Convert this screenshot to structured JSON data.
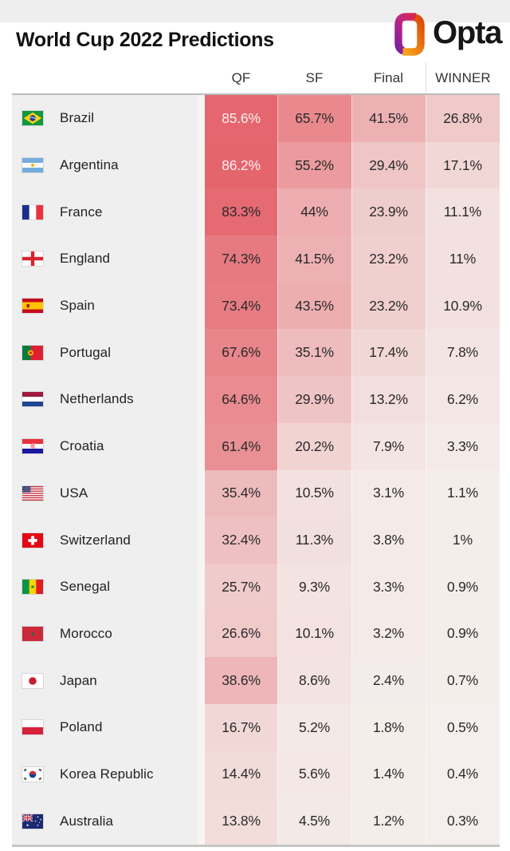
{
  "header": {
    "title": "World Cup 2022 Predictions",
    "brand": "Opta"
  },
  "style": {
    "heat_base": "#f4efec",
    "heat_max": "#e24d57",
    "heat_gamma": 1.1,
    "white_text_threshold": 85,
    "panel_bg": "#efefef",
    "value_text": "#2a2a2a",
    "value_text_light": "#fcf2f1",
    "brand_gradient_left": [
      "#d42b49",
      "#c4267d",
      "#7b1fa2"
    ],
    "brand_gradient_right": [
      "#dc4a0c",
      "#f7a31b"
    ]
  },
  "chart_data": {
    "type": "heatmap",
    "title": "World Cup 2022 Predictions",
    "unit": "%",
    "columns": [
      "QF",
      "SF",
      "Final",
      "WINNER"
    ],
    "rows": [
      {
        "team": "Brazil",
        "flag": "br",
        "values": [
          85.6,
          65.7,
          41.5,
          26.8
        ]
      },
      {
        "team": "Argentina",
        "flag": "ar",
        "values": [
          86.2,
          55.2,
          29.4,
          17.1
        ]
      },
      {
        "team": "France",
        "flag": "fr",
        "values": [
          83.3,
          44,
          23.9,
          11.1
        ]
      },
      {
        "team": "England",
        "flag": "en",
        "values": [
          74.3,
          41.5,
          23.2,
          11
        ]
      },
      {
        "team": "Spain",
        "flag": "es",
        "values": [
          73.4,
          43.5,
          23.2,
          10.9
        ]
      },
      {
        "team": "Portugal",
        "flag": "pt",
        "values": [
          67.6,
          35.1,
          17.4,
          7.8
        ]
      },
      {
        "team": "Netherlands",
        "flag": "nl",
        "values": [
          64.6,
          29.9,
          13.2,
          6.2
        ]
      },
      {
        "team": "Croatia",
        "flag": "hr",
        "values": [
          61.4,
          20.2,
          7.9,
          3.3
        ]
      },
      {
        "team": "USA",
        "flag": "us",
        "values": [
          35.4,
          10.5,
          3.1,
          1.1
        ]
      },
      {
        "team": "Switzerland",
        "flag": "ch",
        "values": [
          32.4,
          11.3,
          3.8,
          1
        ]
      },
      {
        "team": "Senegal",
        "flag": "sn",
        "values": [
          25.7,
          9.3,
          3.3,
          0.9
        ]
      },
      {
        "team": "Morocco",
        "flag": "ma",
        "values": [
          26.6,
          10.1,
          3.2,
          0.9
        ]
      },
      {
        "team": "Japan",
        "flag": "jp",
        "values": [
          38.6,
          8.6,
          2.4,
          0.7
        ]
      },
      {
        "team": "Poland",
        "flag": "pl",
        "values": [
          16.7,
          5.2,
          1.8,
          0.5
        ]
      },
      {
        "team": "Korea Republic",
        "flag": "kr",
        "values": [
          14.4,
          5.6,
          1.4,
          0.4
        ]
      },
      {
        "team": "Australia",
        "flag": "au",
        "values": [
          13.8,
          4.5,
          1.2,
          0.3
        ]
      }
    ]
  }
}
